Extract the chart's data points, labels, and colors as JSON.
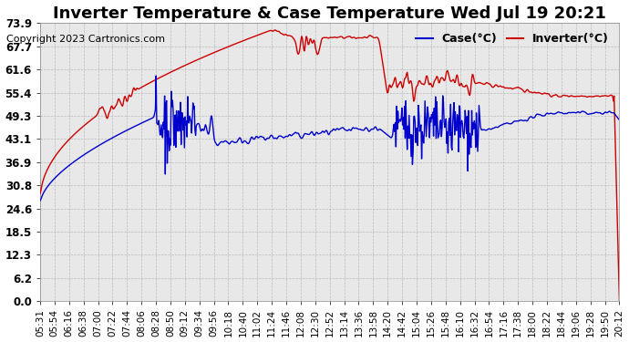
{
  "title": "Inverter Temperature & Case Temperature Wed Jul 19 20:21",
  "copyright_text": "Copyright 2023 Cartronics.com",
  "legend_case_label": "Case(°C)",
  "legend_inverter_label": "Inverter(°C)",
  "case_color": "#0000cc",
  "inverter_color": "#cc0000",
  "background_color": "#ffffff",
  "plot_bg_color": "#e8e8e8",
  "grid_color": "#bbbbbb",
  "yticks": [
    0.0,
    6.2,
    12.3,
    18.5,
    24.6,
    30.8,
    36.9,
    43.1,
    49.3,
    55.4,
    61.6,
    67.7,
    73.9
  ],
  "ylim": [
    0.0,
    73.9
  ],
  "xtick_labels": [
    "05:31",
    "05:54",
    "06:16",
    "06:38",
    "07:00",
    "07:22",
    "07:44",
    "08:06",
    "08:28",
    "08:50",
    "09:12",
    "09:34",
    "09:56",
    "10:18",
    "10:40",
    "11:02",
    "11:24",
    "11:46",
    "12:08",
    "12:30",
    "12:52",
    "13:14",
    "13:36",
    "13:58",
    "14:20",
    "14:42",
    "15:04",
    "15:26",
    "15:48",
    "16:10",
    "16:32",
    "16:54",
    "17:16",
    "17:38",
    "18:00",
    "18:22",
    "18:44",
    "19:06",
    "19:28",
    "19:50",
    "20:12"
  ],
  "title_fontsize": 13,
  "copyright_fontsize": 8,
  "legend_fontsize": 9,
  "tick_fontsize": 7.5,
  "ytick_fontsize": 8.5,
  "line_width": 1.0
}
